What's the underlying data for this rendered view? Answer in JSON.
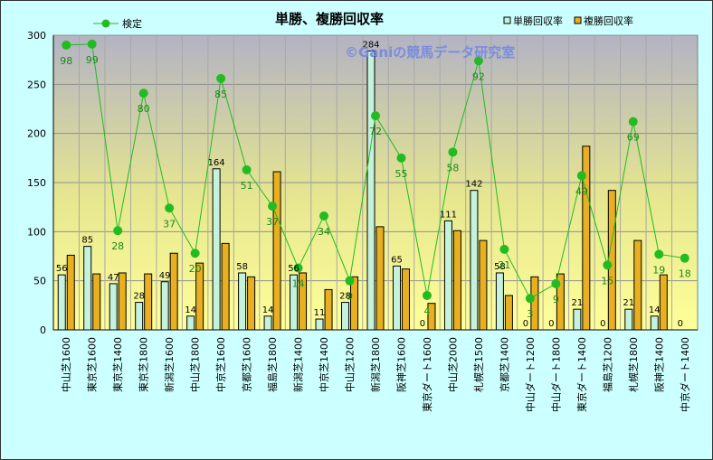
{
  "chart_data": {
    "type": "bar",
    "title": "単勝、複勝回収率",
    "watermark": "©Ganiの競馬データ研究室",
    "ylim": [
      0,
      300
    ],
    "yticks": [
      0,
      50,
      100,
      150,
      200,
      250,
      300
    ],
    "grid": true,
    "legend_position": "top",
    "categories": [
      "中山芝1600",
      "東京芝1600",
      "東京芝1400",
      "東京芝1800",
      "新潟芝1600",
      "中山芝1800",
      "中京芝1600",
      "京都芝1600",
      "福島芝1800",
      "新潟芝1400",
      "中京芝1400",
      "中山芝1200",
      "新潟芝1800",
      "阪神芝1600",
      "東京ダート1600",
      "中山芝2000",
      "札幌芝1500",
      "京都芝1400",
      "中山ダート1200",
      "中山ダート1800",
      "東京ダート1400",
      "福島芝1200",
      "札幌芝1800",
      "阪神芝1400",
      "中京ダート1400"
    ],
    "series": [
      {
        "name": "単勝回収率",
        "kind": "bar",
        "color": "#c4f2dc",
        "values": [
          56,
          85,
          47,
          28,
          49,
          14,
          164,
          58,
          14,
          56,
          11,
          28,
          284,
          65,
          0,
          111,
          142,
          58,
          0,
          0,
          21,
          0,
          21,
          14,
          0
        ],
        "labels": [
          "56",
          "85",
          "47",
          "28",
          "49",
          "14",
          "164",
          "58",
          "14",
          "56",
          "11",
          "28",
          "284",
          "65",
          "0",
          "111",
          "142",
          "58",
          "0",
          "0",
          "21",
          "0",
          "21",
          "14",
          "0"
        ]
      },
      {
        "name": "複勝回収率",
        "kind": "bar",
        "color": "#e8b020",
        "values": [
          76,
          57,
          58,
          57,
          78,
          68,
          88,
          54,
          161,
          58,
          41,
          54,
          105,
          62,
          27,
          101,
          91,
          35,
          54,
          57,
          187,
          142,
          91,
          56,
          0
        ]
      },
      {
        "name": "検定",
        "kind": "line",
        "color": "#22bb22",
        "values": [
          290,
          291,
          101,
          241,
          124,
          78,
          256,
          163,
          126,
          63,
          116,
          50,
          218,
          175,
          35,
          181,
          274,
          82,
          32,
          47,
          157,
          66,
          212,
          77,
          73
        ],
        "labels": [
          "98",
          "99",
          "28",
          "80",
          "37",
          "20",
          "85",
          "51",
          "37",
          "14",
          "34",
          "9",
          "72",
          "55",
          "4",
          "58",
          "92",
          "21",
          "3",
          "9",
          "49",
          "15",
          "69",
          "19",
          "18"
        ]
      }
    ]
  }
}
